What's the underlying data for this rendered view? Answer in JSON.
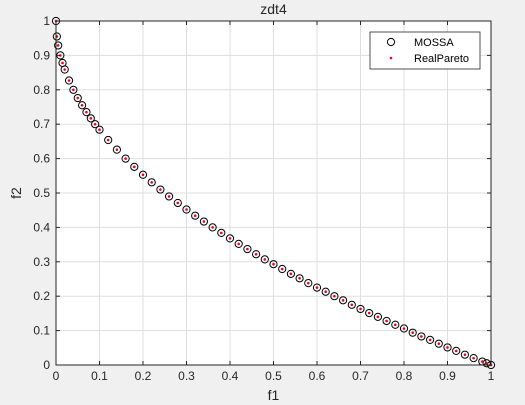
{
  "chart_data": {
    "type": "scatter",
    "title": "zdt4",
    "xlabel": "f1",
    "ylabel": "f2",
    "xlim": [
      0,
      1
    ],
    "ylim": [
      0,
      1
    ],
    "xticks": [
      "0",
      "0.1",
      "0.2",
      "0.3",
      "0.4",
      "0.5",
      "0.6",
      "0.7",
      "0.8",
      "0.9",
      "1"
    ],
    "yticks": [
      "0",
      "0.1",
      "0.2",
      "0.3",
      "0.4",
      "0.5",
      "0.6",
      "0.7",
      "0.8",
      "0.9",
      "1"
    ],
    "grid": true,
    "legend_location": "top-right",
    "series": [
      {
        "name": "MOSSA",
        "marker": "circle-open",
        "color": "#000000",
        "x": [
          0.0,
          0.002,
          0.005,
          0.01,
          0.015,
          0.02,
          0.03,
          0.04,
          0.05,
          0.06,
          0.07,
          0.08,
          0.09,
          0.1,
          0.12,
          0.14,
          0.16,
          0.18,
          0.2,
          0.22,
          0.24,
          0.26,
          0.28,
          0.3,
          0.32,
          0.34,
          0.36,
          0.38,
          0.4,
          0.42,
          0.44,
          0.46,
          0.48,
          0.5,
          0.52,
          0.54,
          0.56,
          0.58,
          0.6,
          0.62,
          0.64,
          0.66,
          0.68,
          0.7,
          0.72,
          0.74,
          0.76,
          0.78,
          0.8,
          0.82,
          0.84,
          0.86,
          0.88,
          0.9,
          0.92,
          0.94,
          0.96,
          0.98,
          0.99,
          1.0
        ],
        "y": [
          1.0,
          0.955,
          0.929,
          0.9,
          0.878,
          0.859,
          0.827,
          0.8,
          0.776,
          0.755,
          0.735,
          0.717,
          0.7,
          0.684,
          0.654,
          0.626,
          0.6,
          0.576,
          0.553,
          0.531,
          0.51,
          0.49,
          0.471,
          0.452,
          0.434,
          0.417,
          0.4,
          0.384,
          0.368,
          0.352,
          0.337,
          0.322,
          0.307,
          0.293,
          0.279,
          0.265,
          0.252,
          0.238,
          0.225,
          0.213,
          0.2,
          0.188,
          0.175,
          0.163,
          0.151,
          0.14,
          0.128,
          0.117,
          0.106,
          0.094,
          0.083,
          0.073,
          0.062,
          0.051,
          0.041,
          0.03,
          0.02,
          0.01,
          0.005,
          0.0
        ]
      },
      {
        "name": "RealPareto",
        "marker": "dot",
        "color": "#e8001c",
        "x": [
          0.0,
          0.002,
          0.005,
          0.01,
          0.015,
          0.02,
          0.03,
          0.04,
          0.05,
          0.06,
          0.07,
          0.08,
          0.09,
          0.1,
          0.12,
          0.14,
          0.16,
          0.18,
          0.2,
          0.22,
          0.24,
          0.26,
          0.28,
          0.3,
          0.32,
          0.34,
          0.36,
          0.38,
          0.4,
          0.42,
          0.44,
          0.46,
          0.48,
          0.5,
          0.52,
          0.54,
          0.56,
          0.58,
          0.6,
          0.62,
          0.64,
          0.66,
          0.68,
          0.7,
          0.72,
          0.74,
          0.76,
          0.78,
          0.8,
          0.82,
          0.84,
          0.86,
          0.88,
          0.9,
          0.92,
          0.94,
          0.96,
          0.98,
          0.99,
          1.0
        ],
        "y": [
          1.0,
          0.955,
          0.929,
          0.9,
          0.878,
          0.859,
          0.827,
          0.8,
          0.776,
          0.755,
          0.735,
          0.717,
          0.7,
          0.684,
          0.654,
          0.626,
          0.6,
          0.576,
          0.553,
          0.531,
          0.51,
          0.49,
          0.471,
          0.452,
          0.434,
          0.417,
          0.4,
          0.384,
          0.368,
          0.352,
          0.337,
          0.322,
          0.307,
          0.293,
          0.279,
          0.265,
          0.252,
          0.238,
          0.225,
          0.213,
          0.2,
          0.188,
          0.175,
          0.163,
          0.151,
          0.14,
          0.128,
          0.117,
          0.106,
          0.094,
          0.083,
          0.073,
          0.062,
          0.051,
          0.041,
          0.03,
          0.02,
          0.01,
          0.005,
          0.0
        ]
      }
    ]
  }
}
